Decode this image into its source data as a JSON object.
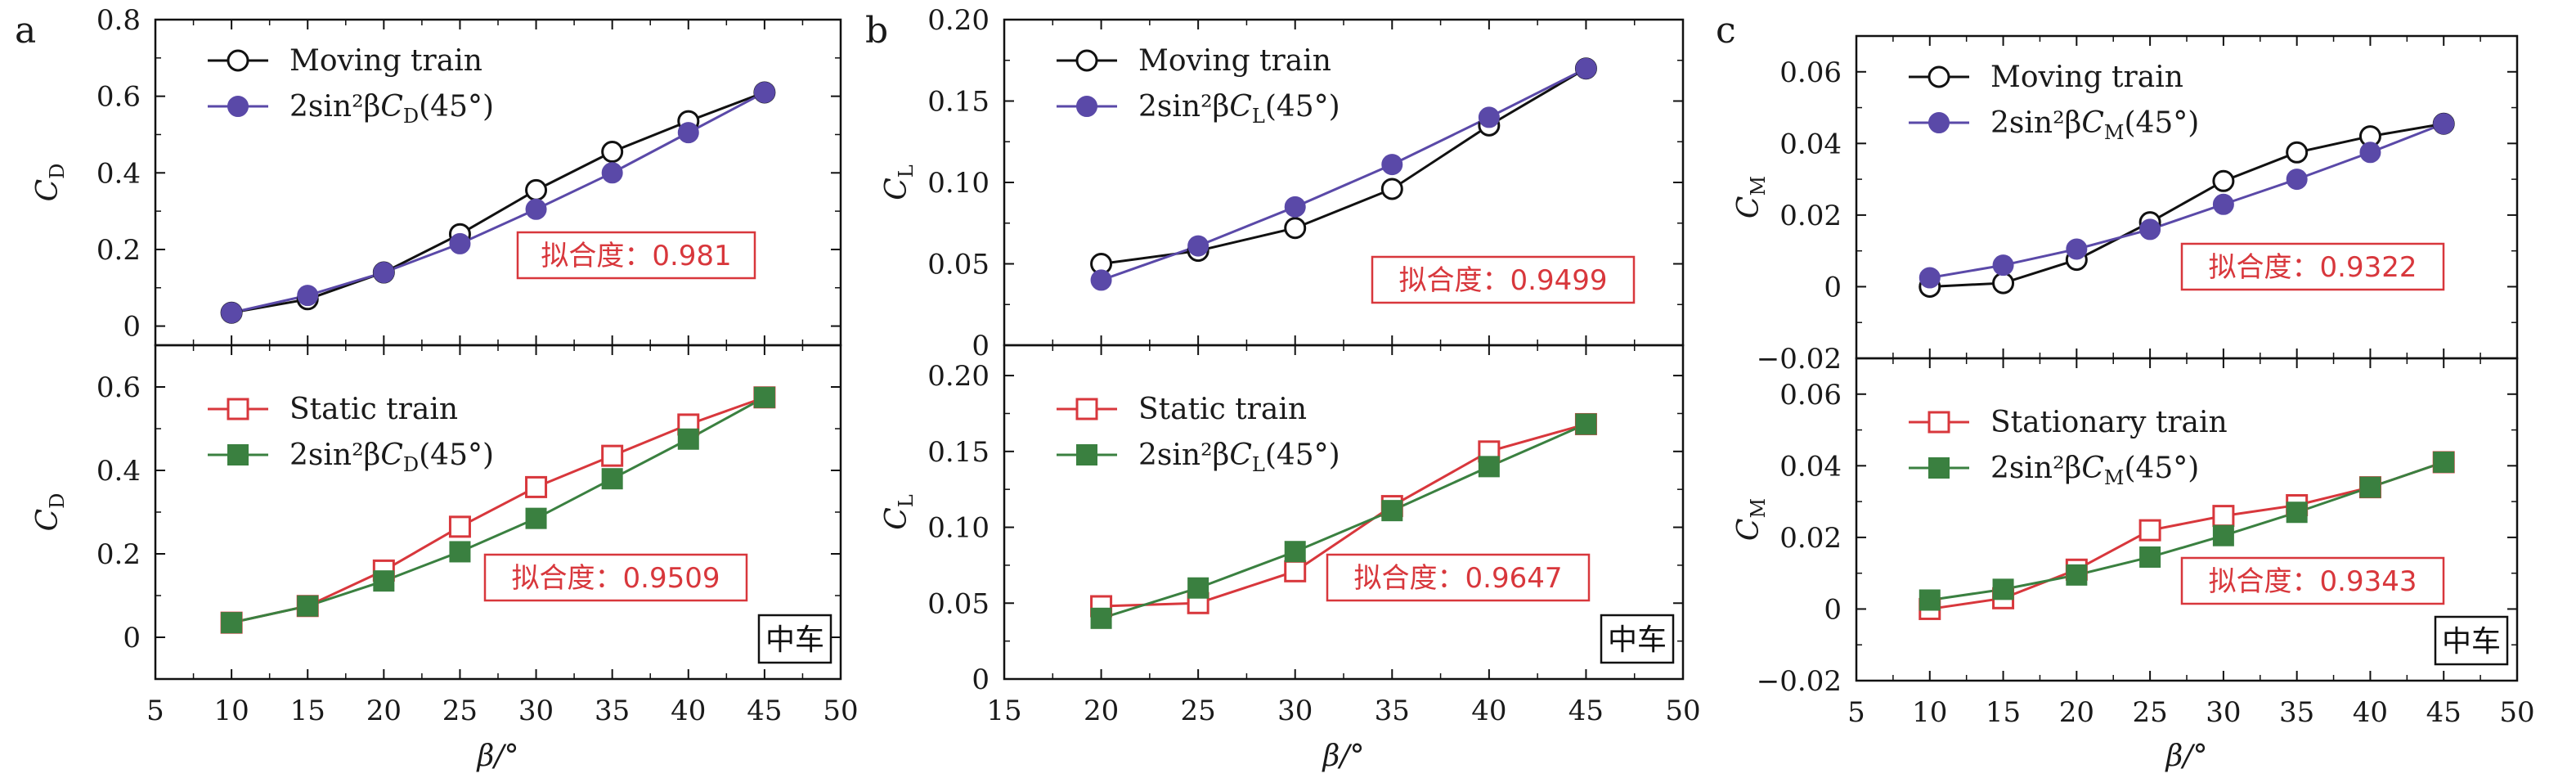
{
  "colors": {
    "black": "#111111",
    "purple": "#5a49a8",
    "red": "#d8373c",
    "green": "#3a8040"
  },
  "x_label": "β/°",
  "panels": [
    {
      "letter": "a",
      "x_ticks": [
        "5",
        "10",
        "15",
        "20",
        "25",
        "30",
        "35",
        "40",
        "45",
        "50"
      ],
      "top": {
        "ylabel_main": "C",
        "ylabel_sub": "D",
        "y_ticks": [
          "0",
          "0.2",
          "0.4",
          "0.6",
          "0.8"
        ],
        "legend": [
          {
            "prefix": "Moving train",
            "mid": "",
            "suffix": ""
          },
          {
            "prefix": "2sin²β",
            "mid": "C",
            "sub": "D",
            "suffix": "(45°)"
          }
        ],
        "fit_text": "拟合度：0.981"
      },
      "bottom": {
        "ylabel_main": "C",
        "ylabel_sub": "D",
        "y_ticks": [
          "0",
          "0.2",
          "0.4",
          "0.6"
        ],
        "legend": [
          {
            "prefix": "Static train",
            "mid": "",
            "suffix": ""
          },
          {
            "prefix": "2sin²β",
            "mid": "C",
            "sub": "D",
            "suffix": "(45°)"
          }
        ],
        "fit_text": "拟合度：0.9509",
        "tag": "中车"
      }
    },
    {
      "letter": "b",
      "x_ticks": [
        "15",
        "20",
        "25",
        "30",
        "35",
        "40",
        "45",
        "50"
      ],
      "top": {
        "ylabel_main": "C",
        "ylabel_sub": "L",
        "y_ticks": [
          "0",
          "0.05",
          "0.10",
          "0.15",
          "0.20"
        ],
        "legend": [
          {
            "prefix": "Moving train",
            "mid": "",
            "suffix": ""
          },
          {
            "prefix": "2sin²β",
            "mid": "C",
            "sub": "L",
            "suffix": "(45°)"
          }
        ],
        "fit_text": "拟合度：0.9499"
      },
      "bottom": {
        "ylabel_main": "C",
        "ylabel_sub": "L",
        "y_ticks": [
          "0",
          "0.05",
          "0.10",
          "0.15",
          "0.20"
        ],
        "legend": [
          {
            "prefix": "Static train",
            "mid": "",
            "suffix": ""
          },
          {
            "prefix": "2sin²β",
            "mid": "C",
            "sub": "L",
            "suffix": "(45°)"
          }
        ],
        "fit_text": "拟合度：0.9647",
        "tag": "中车"
      }
    },
    {
      "letter": "c",
      "x_ticks": [
        "5",
        "10",
        "15",
        "20",
        "25",
        "30",
        "35",
        "40",
        "45",
        "50"
      ],
      "top": {
        "ylabel_main": "C",
        "ylabel_sub": "M",
        "y_ticks": [
          "−0.02",
          "0",
          "0.02",
          "0.04",
          "0.06"
        ],
        "legend": [
          {
            "prefix": "Moving train",
            "mid": "",
            "suffix": ""
          },
          {
            "prefix": "2sin²β",
            "mid": "C",
            "sub": "M",
            "suffix": "(45°)"
          }
        ],
        "fit_text": "拟合度：0.9322"
      },
      "bottom": {
        "ylabel_main": "C",
        "ylabel_sub": "M",
        "y_ticks": [
          "−0.02",
          "0",
          "0.02",
          "0.04",
          "0.06"
        ],
        "legend": [
          {
            "prefix": "Stationary train",
            "mid": "",
            "suffix": ""
          },
          {
            "prefix": "2sin²β",
            "mid": "C",
            "sub": "M",
            "suffix": "(45°)"
          }
        ],
        "fit_text": "拟合度：0.9343",
        "tag": "中车"
      }
    }
  ],
  "chart_data": [
    {
      "type": "line",
      "panel": "a-top",
      "x": [
        10,
        15,
        20,
        25,
        30,
        35,
        40,
        45
      ],
      "xlim": [
        5,
        50
      ],
      "ylim": [
        -0.05,
        0.8
      ],
      "series": [
        {
          "name": "Moving train",
          "marker": "open-circle",
          "values": [
            0.035,
            0.07,
            0.14,
            0.24,
            0.355,
            0.455,
            0.535,
            0.61
          ]
        },
        {
          "name": "2sin²βC_D(45°)",
          "marker": "filled-circle",
          "values": [
            0.035,
            0.08,
            0.14,
            0.215,
            0.305,
            0.4,
            0.505,
            0.61
          ]
        }
      ]
    },
    {
      "type": "line",
      "panel": "a-bottom",
      "x": [
        10,
        15,
        20,
        25,
        30,
        35,
        40,
        45
      ],
      "xlim": [
        5,
        50
      ],
      "ylim": [
        -0.1,
        0.7
      ],
      "series": [
        {
          "name": "Static train",
          "marker": "open-square",
          "values": [
            0.035,
            0.075,
            0.16,
            0.265,
            0.36,
            0.435,
            0.51,
            0.575
          ]
        },
        {
          "name": "2sin²βC_D(45°)",
          "marker": "filled-square",
          "values": [
            0.035,
            0.075,
            0.135,
            0.205,
            0.285,
            0.38,
            0.475,
            0.575
          ]
        }
      ]
    },
    {
      "type": "line",
      "panel": "b-top",
      "x": [
        20,
        25,
        30,
        35,
        40,
        45
      ],
      "xlim": [
        15,
        50
      ],
      "ylim": [
        0,
        0.2
      ],
      "series": [
        {
          "name": "Moving train",
          "marker": "open-circle",
          "values": [
            0.05,
            0.058,
            0.072,
            0.096,
            0.135,
            0.17
          ]
        },
        {
          "name": "2sin²βC_L(45°)",
          "marker": "filled-circle",
          "values": [
            0.04,
            0.061,
            0.085,
            0.111,
            0.14,
            0.17
          ]
        }
      ]
    },
    {
      "type": "line",
      "panel": "b-bottom",
      "x": [
        20,
        25,
        30,
        35,
        40,
        45
      ],
      "xlim": [
        15,
        50
      ],
      "ylim": [
        0,
        0.22
      ],
      "series": [
        {
          "name": "Static train",
          "marker": "open-square",
          "values": [
            0.048,
            0.05,
            0.071,
            0.114,
            0.15,
            0.168
          ]
        },
        {
          "name": "2sin²βC_L(45°)",
          "marker": "filled-square",
          "values": [
            0.04,
            0.06,
            0.084,
            0.111,
            0.14,
            0.168
          ]
        }
      ]
    },
    {
      "type": "line",
      "panel": "c-top",
      "x": [
        10,
        15,
        20,
        25,
        30,
        35,
        40,
        45
      ],
      "xlim": [
        5,
        50
      ],
      "ylim": [
        -0.02,
        0.07
      ],
      "series": [
        {
          "name": "Moving train",
          "marker": "open-circle",
          "values": [
            0.0,
            0.001,
            0.0075,
            0.018,
            0.0295,
            0.0375,
            0.042,
            0.0455
          ]
        },
        {
          "name": "2sin²βC_M(45°)",
          "marker": "filled-circle",
          "values": [
            0.0025,
            0.006,
            0.0105,
            0.016,
            0.023,
            0.03,
            0.0375,
            0.0455
          ]
        }
      ]
    },
    {
      "type": "line",
      "panel": "c-bottom",
      "x": [
        10,
        15,
        20,
        25,
        30,
        35,
        40,
        45
      ],
      "xlim": [
        5,
        50
      ],
      "ylim": [
        -0.02,
        0.07
      ],
      "series": [
        {
          "name": "Stationary train",
          "marker": "open-square",
          "values": [
            0.0,
            0.003,
            0.011,
            0.022,
            0.026,
            0.029,
            0.034,
            0.041
          ]
        },
        {
          "name": "2sin²βC_M(45°)",
          "marker": "filled-square",
          "values": [
            0.0025,
            0.0055,
            0.0095,
            0.0145,
            0.0205,
            0.027,
            0.034,
            0.041
          ]
        }
      ]
    }
  ]
}
